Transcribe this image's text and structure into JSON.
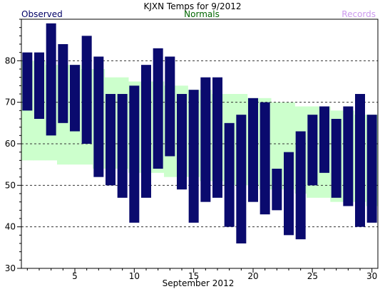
{
  "chart_data": {
    "type": "bar",
    "title": "KJXN Temps for 9/2012",
    "xlabel": "September 2012",
    "ylabel": "",
    "legend": {
      "observed": {
        "label": "Observed",
        "color": "#000066"
      },
      "normals": {
        "label": "Normals",
        "color": "#006600"
      },
      "records": {
        "label": "Records",
        "color": "#cc99ee"
      }
    },
    "xlim": [
      0.5,
      30.5
    ],
    "ylim": [
      30,
      90
    ],
    "x_ticks": [
      5,
      10,
      15,
      20,
      25,
      30
    ],
    "y_ticks": [
      30,
      40,
      50,
      60,
      70,
      80
    ],
    "grid_y": [
      40,
      50,
      60,
      70,
      80
    ],
    "grid": "horizontal dashed",
    "colors": {
      "observed_bar": "#0a0a6e",
      "normals_band": "#ccffcc",
      "grid": "#333333",
      "axis": "#000000"
    },
    "series": [
      {
        "name": "Observed",
        "days": [
          1,
          2,
          3,
          4,
          5,
          6,
          7,
          8,
          9,
          10,
          11,
          12,
          13,
          14,
          15,
          16,
          17,
          18,
          19,
          20,
          21,
          22,
          23,
          24,
          25,
          26,
          27,
          28,
          29,
          30
        ],
        "high": [
          82,
          82,
          89,
          84,
          79,
          86,
          81,
          72,
          72,
          74,
          79,
          83,
          81,
          72,
          73,
          76,
          76,
          65,
          67,
          71,
          70,
          54,
          58,
          63,
          67,
          69,
          66,
          69,
          72,
          67
        ],
        "low": [
          68,
          66,
          62,
          65,
          63,
          60,
          52,
          50,
          47,
          41,
          47,
          54,
          57,
          49,
          41,
          46,
          47,
          40,
          36,
          46,
          43,
          44,
          38,
          37,
          50,
          53,
          47,
          45,
          40,
          41
        ]
      },
      {
        "name": "Normals",
        "days": [
          1,
          2,
          3,
          4,
          5,
          6,
          7,
          8,
          9,
          10,
          11,
          12,
          13,
          14,
          15,
          16,
          17,
          18,
          19,
          20,
          21,
          22,
          23,
          24,
          25,
          26,
          27,
          28,
          29,
          30
        ],
        "high": [
          80,
          80,
          79,
          79,
          79,
          78,
          78,
          76,
          76,
          75,
          75,
          75,
          74,
          74,
          73,
          73,
          72,
          72,
          72,
          71,
          71,
          70,
          70,
          69,
          69,
          69,
          68,
          68,
          67,
          67
        ],
        "low": [
          56,
          56,
          56,
          55,
          55,
          55,
          54,
          54,
          54,
          53,
          53,
          53,
          52,
          52,
          52,
          51,
          51,
          50,
          50,
          50,
          49,
          49,
          49,
          48,
          47,
          47,
          46,
          46,
          46,
          45
        ]
      }
    ]
  }
}
